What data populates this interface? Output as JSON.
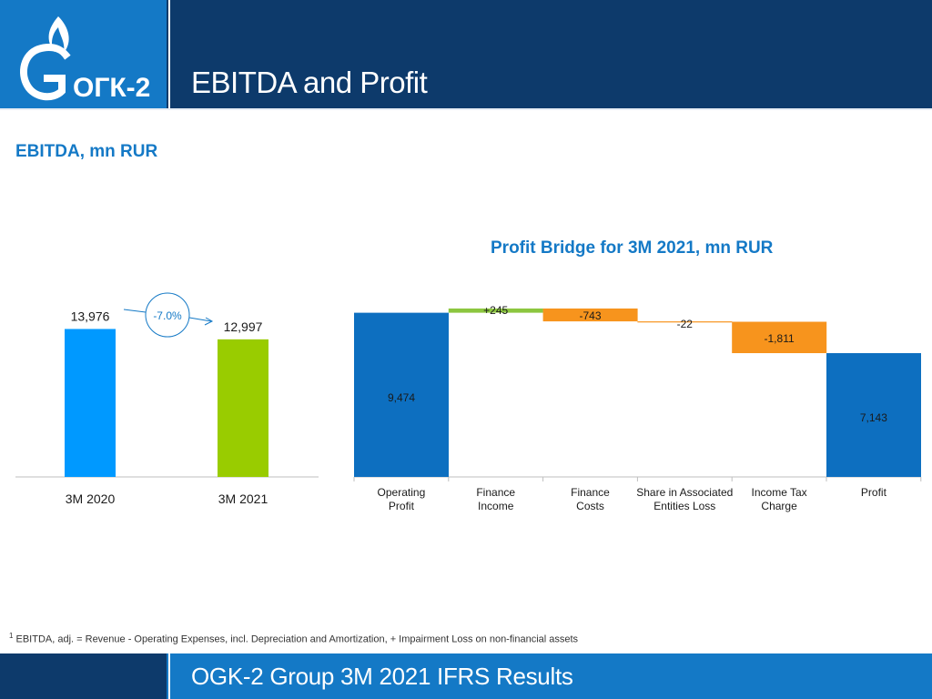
{
  "header": {
    "title": "EBITDA and Profit",
    "logo_text": "ОГК-2"
  },
  "ebitda": {
    "title": "EBITDA, mn RUR",
    "change_label": "-7.0%"
  },
  "bridge": {
    "title": "Profit Bridge for 3M 2021, mn RUR"
  },
  "chart_data": [
    {
      "type": "bar",
      "title": "EBITDA, mn RUR",
      "categories": [
        "3M 2020",
        "3M 2021"
      ],
      "values": [
        13976,
        12997
      ],
      "value_labels": [
        "13,976",
        "12,997"
      ],
      "colors": [
        "#0099ff",
        "#99cc00"
      ],
      "ylim": [
        0,
        20000
      ],
      "annotation": "-7.0%"
    },
    {
      "type": "bar",
      "subtype": "waterfall",
      "title": "Profit Bridge for 3M 2021, mn RUR",
      "categories": [
        "Operating\nProfit",
        "Finance\nIncome",
        "Finance\nCosts",
        "Share in Associated\nEntities Loss",
        "Income Tax\nCharge",
        "Profit"
      ],
      "steps": [
        {
          "kind": "total",
          "value": 9474,
          "label": "9,474",
          "color": "#0d6fc0"
        },
        {
          "kind": "delta",
          "value": 245,
          "label": "+245",
          "color": "#8cc63f"
        },
        {
          "kind": "delta",
          "value": -743,
          "label": "-743",
          "color": "#f7941d"
        },
        {
          "kind": "delta",
          "value": -22,
          "label": "-22",
          "color": "#f7941d"
        },
        {
          "kind": "delta",
          "value": -1811,
          "label": "-1,811",
          "color": "#f7941d"
        },
        {
          "kind": "total",
          "value": 7143,
          "label": "7,143",
          "color": "#0d6fc0"
        }
      ],
      "ylim": [
        0,
        10000
      ]
    }
  ],
  "footnote": {
    "marker": "1",
    "text": " EBITDA, adj. = Revenue - Operating Expenses, incl. Depreciation and Amortization, + Impairment Loss on non-financial assets"
  },
  "footer": {
    "title": "OGK-2 Group 3M 2021 IFRS Results"
  }
}
